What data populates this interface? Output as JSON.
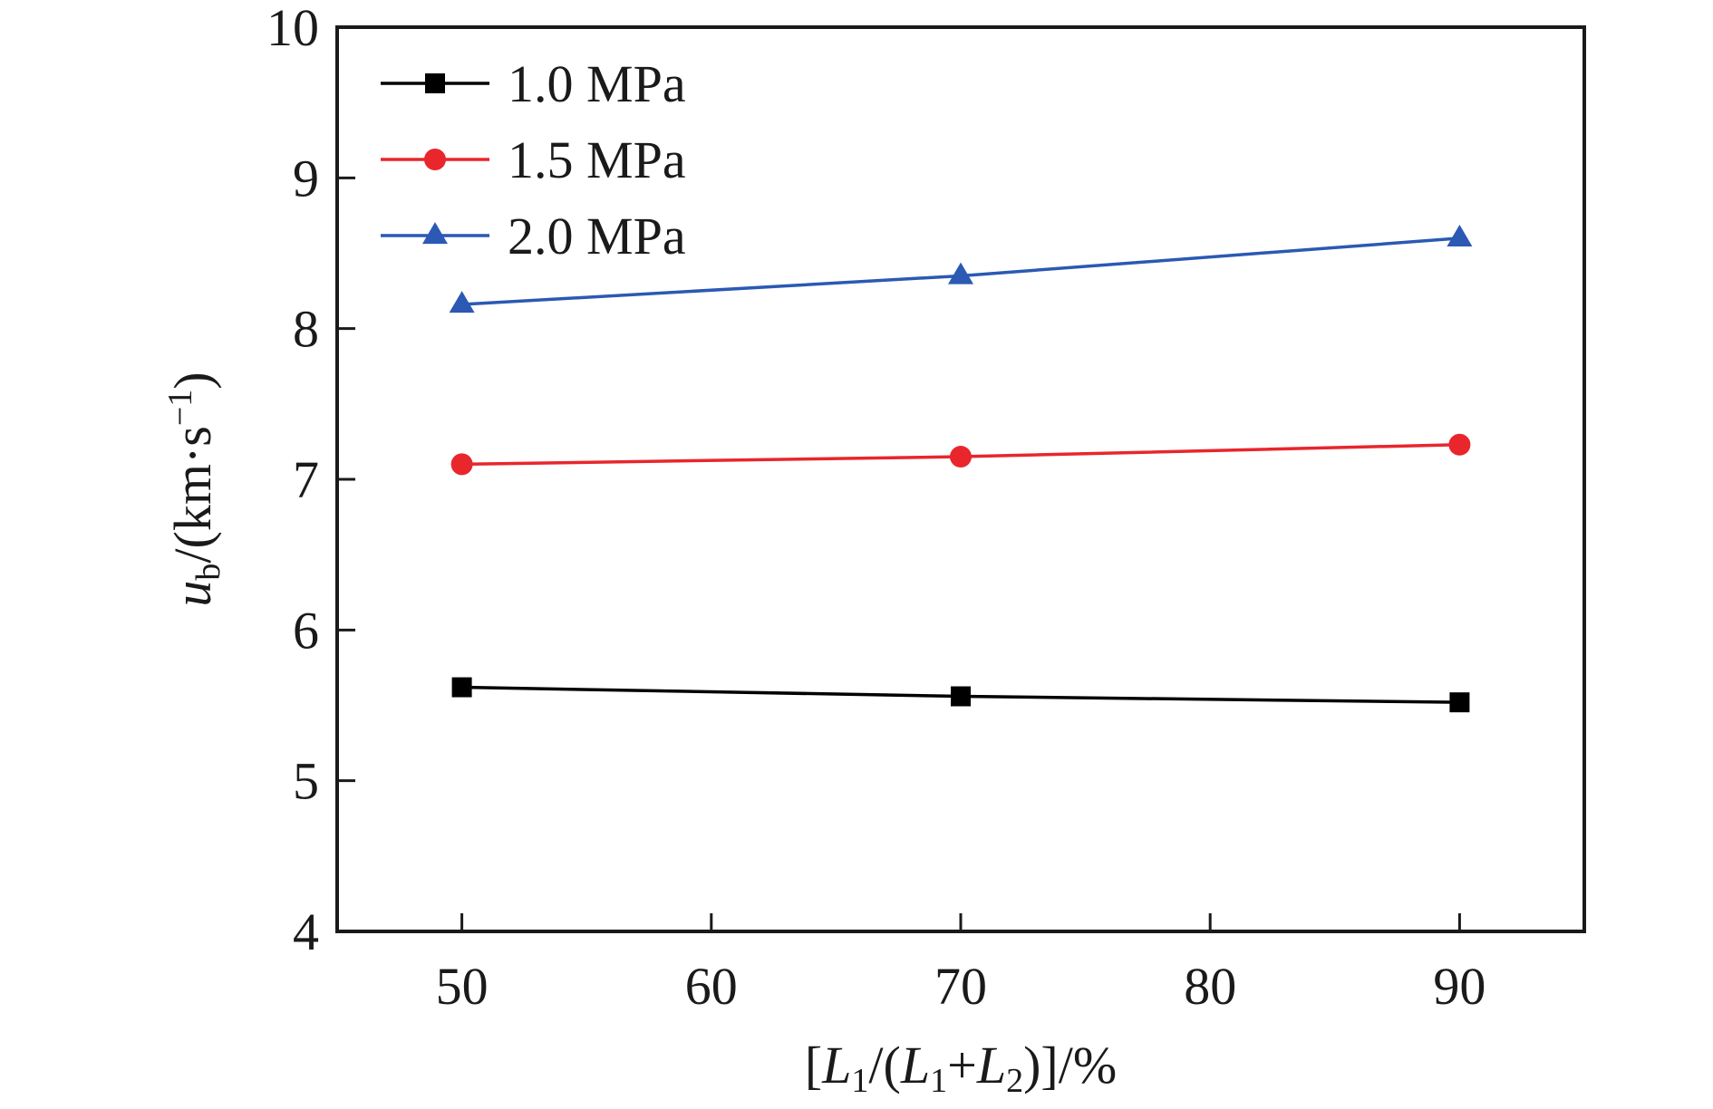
{
  "chart_data": {
    "type": "line",
    "title": "",
    "xlabel": {
      "parts": [
        {
          "text": "[",
          "style": "normal"
        },
        {
          "text": "L",
          "style": "italic"
        },
        {
          "text": "1",
          "style": "sub"
        },
        {
          "text": "/(",
          "style": "normal"
        },
        {
          "text": "L",
          "style": "italic"
        },
        {
          "text": "1",
          "style": "sub"
        },
        {
          "text": "+",
          "style": "normal"
        },
        {
          "text": "L",
          "style": "italic"
        },
        {
          "text": "2",
          "style": "sub"
        },
        {
          "text": ")]/%",
          "style": "normal"
        }
      ]
    },
    "ylabel": {
      "parts": [
        {
          "text": "u",
          "style": "italic"
        },
        {
          "text": "b",
          "style": "sub"
        },
        {
          "text": "/(km·s",
          "style": "normal"
        },
        {
          "text": "−1",
          "style": "sup"
        },
        {
          "text": ")",
          "style": "normal"
        }
      ]
    },
    "xlim": [
      45,
      95
    ],
    "ylim": [
      4,
      10
    ],
    "xticks": [
      50,
      60,
      70,
      80,
      90
    ],
    "yticks": [
      4,
      5,
      6,
      7,
      8,
      9,
      10
    ],
    "grid": false,
    "legend_position": "top-left",
    "x": [
      50,
      70,
      90
    ],
    "series": [
      {
        "name": "1.0 MPa",
        "values": [
          5.62,
          5.56,
          5.52
        ],
        "color": "#000000",
        "marker": "square"
      },
      {
        "name": "1.5 MPa",
        "values": [
          7.1,
          7.15,
          7.23
        ],
        "color": "#e8262c",
        "marker": "circle"
      },
      {
        "name": "2.0 MPa",
        "values": [
          8.16,
          8.35,
          8.6
        ],
        "color": "#2b59b3",
        "marker": "triangle"
      }
    ]
  }
}
